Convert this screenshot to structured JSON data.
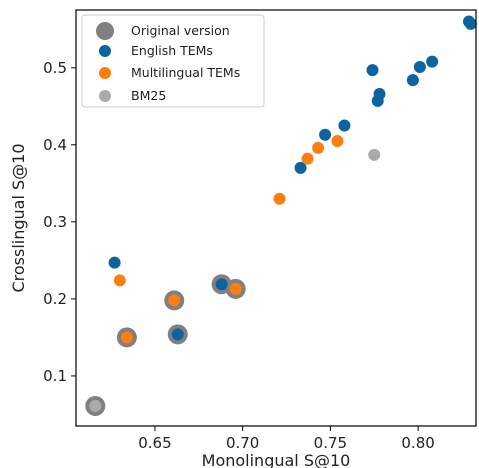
{
  "chart_data": {
    "type": "scatter",
    "xlabel": "Monolingual S@10",
    "ylabel": "Crosslingual S@10",
    "xlim": [
      0.605,
      0.833
    ],
    "ylim": [
      0.035,
      0.575
    ],
    "x_ticks": [
      "0.65",
      "0.70",
      "0.75",
      "0.80"
    ],
    "y_ticks": [
      "0.1",
      "0.2",
      "0.3",
      "0.4",
      "0.5"
    ],
    "legend": {
      "position": "top-left",
      "entries": [
        "Original version",
        "English TEMs",
        "Multilingual TEMs",
        "BM25"
      ]
    },
    "colors": {
      "english": "#0b63a0",
      "multilingual": "#ff7f0e",
      "bm25": "#aaaaaa",
      "original_ring": "#808080"
    },
    "series": [
      {
        "name": "English TEMs",
        "points": [
          {
            "x": 0.627,
            "y": 0.247
          },
          {
            "x": 0.733,
            "y": 0.37
          },
          {
            "x": 0.747,
            "y": 0.413
          },
          {
            "x": 0.758,
            "y": 0.425
          },
          {
            "x": 0.774,
            "y": 0.497
          },
          {
            "x": 0.777,
            "y": 0.457
          },
          {
            "x": 0.778,
            "y": 0.466
          },
          {
            "x": 0.797,
            "y": 0.484
          },
          {
            "x": 0.801,
            "y": 0.501
          },
          {
            "x": 0.808,
            "y": 0.508
          },
          {
            "x": 0.829,
            "y": 0.56
          },
          {
            "x": 0.83,
            "y": 0.557
          },
          {
            "x": 0.663,
            "y": 0.154,
            "original": true
          },
          {
            "x": 0.688,
            "y": 0.219,
            "original": true
          }
        ]
      },
      {
        "name": "Multilingual TEMs",
        "points": [
          {
            "x": 0.63,
            "y": 0.224
          },
          {
            "x": 0.721,
            "y": 0.33
          },
          {
            "x": 0.737,
            "y": 0.382
          },
          {
            "x": 0.743,
            "y": 0.396
          },
          {
            "x": 0.754,
            "y": 0.405
          },
          {
            "x": 0.634,
            "y": 0.15,
            "original": true
          },
          {
            "x": 0.661,
            "y": 0.198,
            "original": true
          },
          {
            "x": 0.696,
            "y": 0.213,
            "original": true
          }
        ]
      },
      {
        "name": "BM25",
        "points": [
          {
            "x": 0.775,
            "y": 0.387
          },
          {
            "x": 0.616,
            "y": 0.061,
            "original": true
          }
        ]
      }
    ]
  }
}
